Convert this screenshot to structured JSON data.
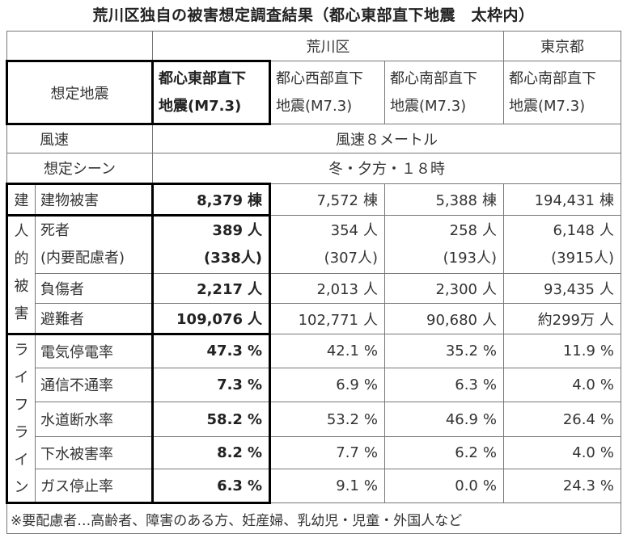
{
  "title": "荒川区独自の被害想定調査結果（都心東部直下地震　太枠内）",
  "groups": {
    "arakawa": "荒川区",
    "tokyo": "東京都"
  },
  "header": {
    "label": "想定地震",
    "quakes": [
      {
        "line1": "都心東部直下",
        "line2": "地震(M7.3)"
      },
      {
        "line1": "都心西部直下",
        "line2": "地震(M7.3)"
      },
      {
        "line1": "都心南部直下",
        "line2": "地震(M7.3)"
      },
      {
        "line1": "都心南部直下",
        "line2": "地震(M7.3)"
      }
    ]
  },
  "wind": {
    "label": "風速",
    "value": "風速８メートル"
  },
  "scene": {
    "label": "想定シーン",
    "value": "冬・夕方・１８時"
  },
  "categories": {
    "building": "建",
    "human": [
      "人",
      "的",
      "被",
      "害"
    ],
    "lifeline": [
      "ラ",
      "イ",
      "フ",
      "ラ",
      "イ",
      "ン"
    ]
  },
  "rows": {
    "building": {
      "label": "建物被害",
      "unit": "棟",
      "values": [
        "8,379",
        "7,572",
        "5,388",
        "194,431"
      ]
    },
    "death": {
      "label": "死者",
      "sublabel": "(内要配慮者)",
      "unit": "人",
      "values": [
        "389",
        "354",
        "258",
        "6,148"
      ],
      "subvalues": [
        "(338人)",
        "(307人)",
        "(193人)",
        "(3915人)"
      ]
    },
    "injured": {
      "label": "負傷者",
      "unit": "人",
      "values": [
        "2,217",
        "2,013",
        "2,300",
        "93,435"
      ]
    },
    "evacuee": {
      "label": "避難者",
      "unit": "人",
      "values": [
        "109,076",
        "102,771",
        "90,680",
        "約299万"
      ]
    },
    "power": {
      "label": "電気停電率",
      "unit": "%",
      "values": [
        "47.3",
        "42.1",
        "35.2",
        "11.9"
      ]
    },
    "telecom": {
      "label": "通信不通率",
      "unit": "%",
      "values": [
        "7.3",
        "6.9",
        "6.3",
        "4.0"
      ]
    },
    "water": {
      "label": "水道断水率",
      "unit": "%",
      "values": [
        "58.2",
        "53.2",
        "46.9",
        "26.4"
      ]
    },
    "sewer": {
      "label": "下水被害率",
      "unit": "%",
      "values": [
        "8.2",
        "7.7",
        "6.2",
        "4.0"
      ]
    },
    "gas": {
      "label": "ガス停止率",
      "unit": "%",
      "values": [
        "6.3",
        "9.1",
        "0.0",
        "24.3"
      ]
    }
  },
  "note": "※要配慮者…高齢者、障害のある方、妊産婦、乳幼児・児童・外国人など"
}
